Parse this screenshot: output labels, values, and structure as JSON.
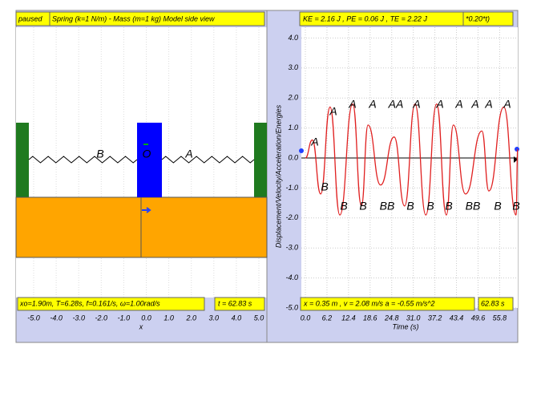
{
  "left_panel": {
    "status": "paused",
    "title": "Spring (k=1 N/m) - Mass (m=1 kg) Model side view",
    "labels": [
      "B",
      "O",
      "A"
    ],
    "info": "xo=1.90m, T=6.28s, f=0.161/s, ω=1.00rad/s",
    "time": "t = 62.83 s",
    "x_label": "x",
    "xlim": [
      -5.8,
      5.0
    ],
    "xticks": [
      {
        "value": -5,
        "label": "-5.0"
      },
      {
        "value": -4,
        "label": "-4.0"
      },
      {
        "value": -3,
        "label": "-3.0"
      },
      {
        "value": -2,
        "label": "-2.0"
      },
      {
        "value": -1,
        "label": "-1.0"
      },
      {
        "value": 0,
        "label": "0.0"
      },
      {
        "value": 1,
        "label": "1.0"
      },
      {
        "value": 2,
        "label": "2.0"
      },
      {
        "value": 3,
        "label": "3.0"
      },
      {
        "value": 4,
        "label": "4.0"
      },
      {
        "value": 5,
        "label": "5.0"
      }
    ]
  },
  "right_panel": {
    "energies": "KE = 2.16 J , PE = 0.06 J , TE = 2.22 J",
    "formula": "*0.20*t)",
    "info": "x = 0.35 m , v = 2.08 m/s a = -0.55 m/s^2",
    "time": "62.83 s",
    "top_labels": [
      "A",
      "A",
      "A",
      "A",
      "AA",
      "A",
      "A",
      "A",
      "A",
      "A",
      "A"
    ],
    "bottom_labels": [
      "B",
      "B",
      "B",
      "BB",
      "B",
      "B",
      "B",
      "BB",
      "B",
      "B"
    ]
  },
  "chart_data": {
    "type": "line",
    "x_label": "Time (s)",
    "y_label": "Displacement/Velocity/Acceleration/Energies",
    "x": [
      0,
      2,
      4.4,
      7.1,
      9.9,
      13.6,
      16.1,
      18,
      21.6,
      25.5,
      28.5,
      31.5,
      34.6,
      37.7,
      40.5,
      42.5,
      46,
      50.7,
      52.7,
      57,
      60.5,
      61
    ],
    "series": [
      {
        "name": "Displacement",
        "color": "#e02020",
        "values": [
          0,
          0.6,
          -1.2,
          1.7,
          -1.9,
          1.8,
          -1.6,
          1.1,
          -0.9,
          0.7,
          -1.6,
          1.8,
          -1.9,
          1.8,
          -1.9,
          1.1,
          -1.2,
          0.9,
          -1.1,
          1.7,
          -1.9,
          0.3
        ]
      }
    ],
    "xlim": [
      0,
      61
    ],
    "ylim": [
      -5,
      4.4
    ],
    "xticks": [
      {
        "value": 0,
        "label": "0.0"
      },
      6.2,
      12.4,
      18.6,
      24.8,
      {
        "value": 31,
        "label": "31.0"
      },
      37.2,
      43.4,
      49.6,
      55.8
    ],
    "yticks": [
      {
        "value": -5,
        "label": "-5.0"
      },
      {
        "value": -4,
        "label": "-4.0"
      },
      {
        "value": -3,
        "label": "-3.0"
      },
      {
        "value": -2,
        "label": "-2.0"
      },
      {
        "value": -1,
        "label": "-1.0"
      },
      {
        "value": 0,
        "label": "0.0"
      },
      {
        "value": 1,
        "label": "1.0"
      },
      {
        "value": 2,
        "label": "2.0"
      },
      {
        "value": 3,
        "label": "3.0"
      },
      {
        "value": 4,
        "label": "4.0"
      }
    ],
    "grid": true
  }
}
